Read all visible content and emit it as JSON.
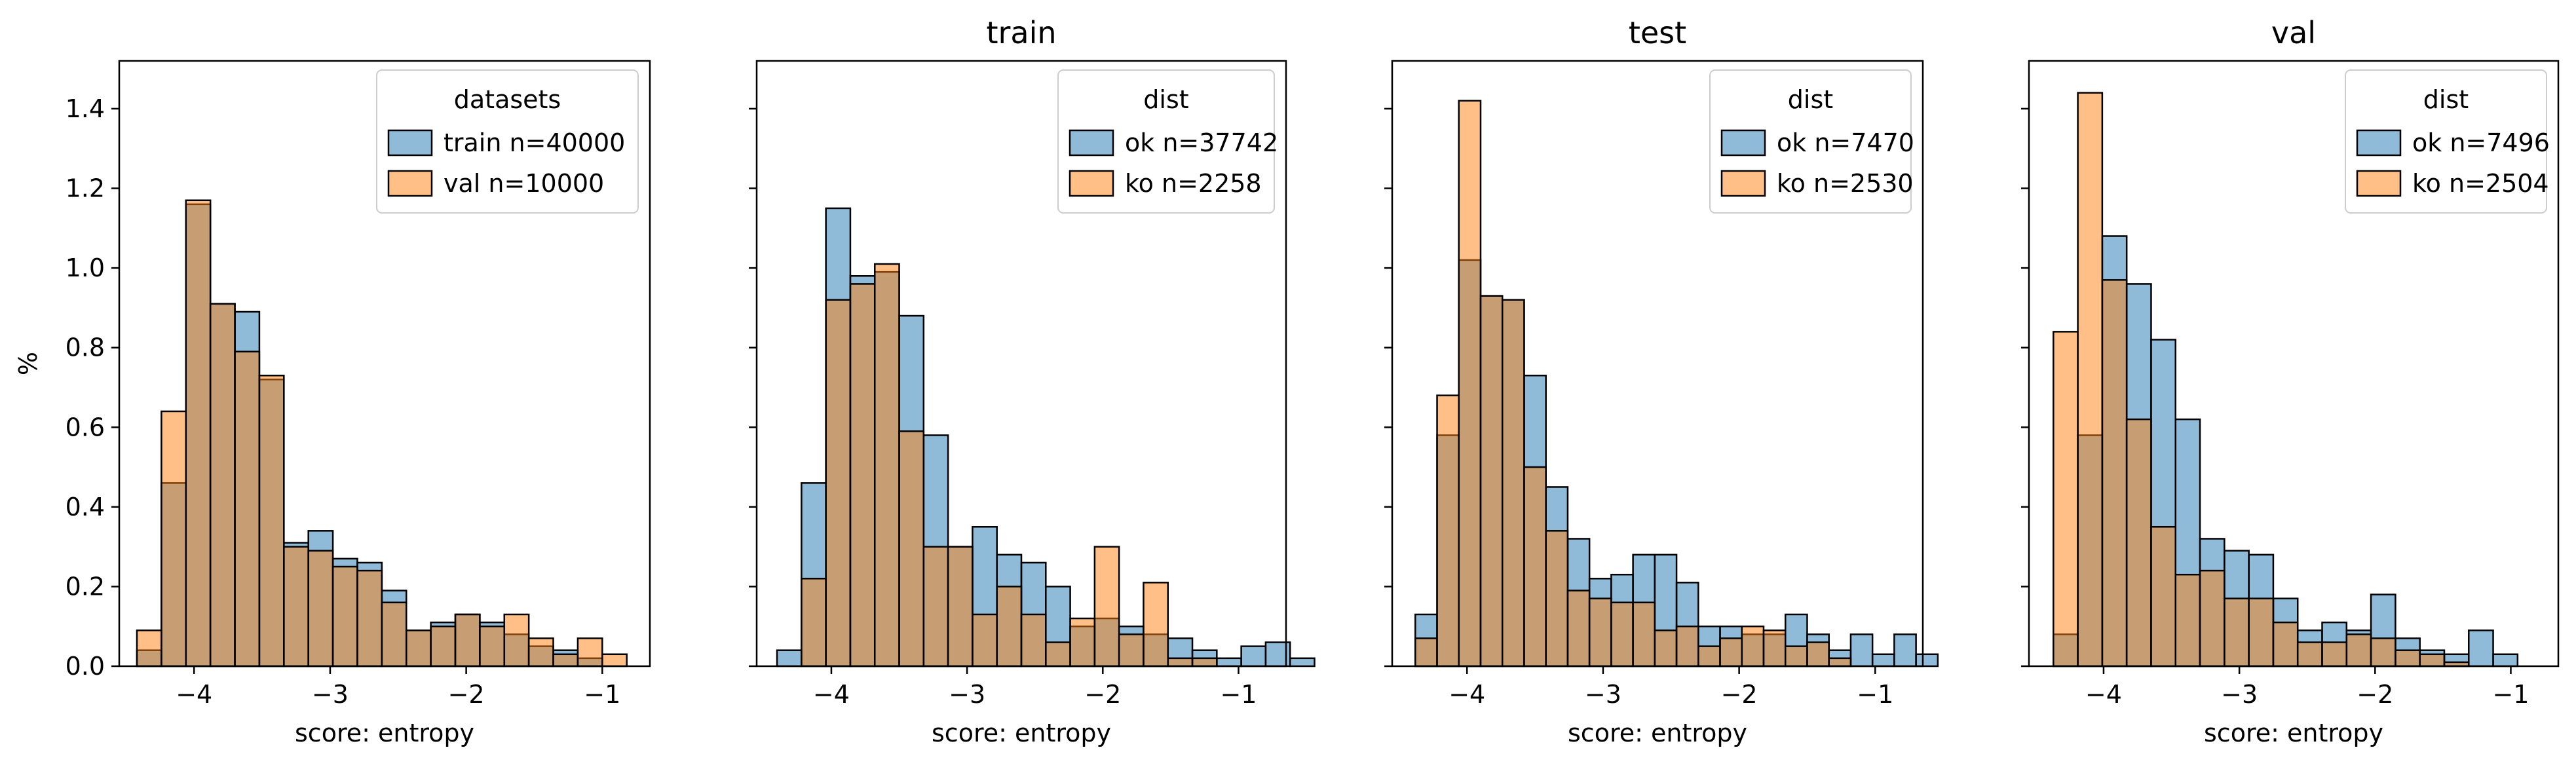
{
  "figure": {
    "colors": {
      "series_a": "#1f77b4",
      "series_b": "#ff7f0e",
      "edge": "#000000",
      "overlap": "#c08c5f"
    },
    "bar_alpha": 0.5
  },
  "chart_data": [
    {
      "type": "bar",
      "title": "",
      "xlabel": "score: entropy",
      "ylabel": "%",
      "xlim": [
        -4.55,
        -0.65
      ],
      "ylim": [
        0,
        1.52
      ],
      "xticks": [
        -4,
        -3,
        -2,
        -1
      ],
      "xtick_labels": [
        "−4",
        "−3",
        "−2",
        "−1"
      ],
      "yticks": [
        0,
        0.2,
        0.4,
        0.6,
        0.8,
        1.0,
        1.2,
        1.4
      ],
      "ytick_labels": [
        "0.0",
        "0.2",
        "0.4",
        "0.6",
        "0.8",
        "1.0",
        "1.2",
        "1.4"
      ],
      "grid": false,
      "legend": {
        "title": "datasets",
        "position": "top-right"
      },
      "series": [
        {
          "name": "train n=40000",
          "bin_start": -4.42,
          "bin_width": 0.18,
          "values": [
            0.04,
            0.46,
            1.16,
            0.91,
            0.89,
            0.72,
            0.31,
            0.34,
            0.27,
            0.26,
            0.19,
            0.09,
            0.11,
            0.13,
            0.11,
            0.08,
            0.05,
            0.04,
            0.02
          ]
        },
        {
          "name": "val n=10000",
          "bin_start": -4.42,
          "bin_width": 0.18,
          "values": [
            0.09,
            0.64,
            1.17,
            0.91,
            0.79,
            0.73,
            0.3,
            0.29,
            0.25,
            0.24,
            0.16,
            0.09,
            0.1,
            0.13,
            0.1,
            0.13,
            0.07,
            0.03,
            0.07,
            0.03
          ]
        }
      ]
    },
    {
      "type": "bar",
      "title": "train",
      "xlabel": "score: entropy",
      "ylabel": "",
      "xlim": [
        -4.55,
        -0.65
      ],
      "ylim": [
        0,
        1.52
      ],
      "xticks": [
        -4,
        -3,
        -2,
        -1
      ],
      "xtick_labels": [
        "−4",
        "−3",
        "−2",
        "−1"
      ],
      "yticks": [
        0,
        0.2,
        0.4,
        0.6,
        0.8,
        1.0,
        1.2,
        1.4
      ],
      "grid": false,
      "legend": {
        "title": "dist",
        "position": "top-right"
      },
      "series": [
        {
          "name": "ok n=37742",
          "bin_start": -4.4,
          "bin_width": 0.18,
          "values": [
            0.04,
            0.46,
            1.15,
            0.98,
            0.99,
            0.88,
            0.58,
            0.3,
            0.35,
            0.28,
            0.26,
            0.2,
            0.1,
            0.12,
            0.1,
            0.08,
            0.07,
            0.04,
            0.02,
            0.05,
            0.06,
            0.02
          ]
        },
        {
          "name": "ko n=2258",
          "bin_start": -4.4,
          "bin_width": 0.18,
          "values": [
            0.0,
            0.22,
            0.92,
            0.96,
            1.01,
            0.59,
            0.3,
            0.3,
            0.13,
            0.2,
            0.13,
            0.06,
            0.12,
            0.3,
            0.08,
            0.21,
            0.02,
            0.02
          ]
        }
      ]
    },
    {
      "type": "bar",
      "title": "test",
      "xlabel": "score: entropy",
      "ylabel": "",
      "xlim": [
        -4.55,
        -0.65
      ],
      "ylim": [
        0,
        1.52
      ],
      "xticks": [
        -4,
        -3,
        -2,
        -1
      ],
      "xtick_labels": [
        "−4",
        "−3",
        "−2",
        "−1"
      ],
      "yticks": [
        0,
        0.2,
        0.4,
        0.6,
        0.8,
        1.0,
        1.2,
        1.4
      ],
      "grid": false,
      "legend": {
        "title": "dist",
        "position": "top-right"
      },
      "series": [
        {
          "name": "ok n=7470",
          "bin_start": -4.38,
          "bin_width": 0.16,
          "values": [
            0.13,
            0.58,
            1.02,
            0.93,
            0.92,
            0.73,
            0.45,
            0.32,
            0.22,
            0.23,
            0.28,
            0.28,
            0.21,
            0.1,
            0.1,
            0.08,
            0.08,
            0.13,
            0.08,
            0.04,
            0.08,
            0.03,
            0.08,
            0.03
          ]
        },
        {
          "name": "ko n=2530",
          "bin_start": -4.38,
          "bin_width": 0.16,
          "values": [
            0.07,
            0.68,
            1.42,
            0.93,
            0.92,
            0.5,
            0.34,
            0.19,
            0.17,
            0.16,
            0.16,
            0.09,
            0.1,
            0.05,
            0.07,
            0.1,
            0.09,
            0.05,
            0.06,
            0.02
          ]
        }
      ]
    },
    {
      "type": "bar",
      "title": "val",
      "xlabel": "score: entropy",
      "ylabel": "",
      "xlim": [
        -4.55,
        -0.65
      ],
      "ylim": [
        0,
        1.52
      ],
      "xticks": [
        -4,
        -3,
        -2,
        -1
      ],
      "xtick_labels": [
        "−4",
        "−3",
        "−2",
        "−1"
      ],
      "yticks": [
        0,
        0.2,
        0.4,
        0.6,
        0.8,
        1.0,
        1.2,
        1.4
      ],
      "grid": false,
      "legend": {
        "title": "dist",
        "position": "top-right"
      },
      "series": [
        {
          "name": "ok n=7496",
          "bin_start": -4.37,
          "bin_width": 0.18,
          "values": [
            0.08,
            0.58,
            1.08,
            0.96,
            0.82,
            0.62,
            0.32,
            0.29,
            0.28,
            0.17,
            0.09,
            0.11,
            0.09,
            0.18,
            0.07,
            0.04,
            0.03,
            0.09,
            0.03
          ]
        },
        {
          "name": "ko n=2504",
          "bin_start": -4.37,
          "bin_width": 0.18,
          "values": [
            0.84,
            1.44,
            0.97,
            0.62,
            0.35,
            0.23,
            0.24,
            0.17,
            0.17,
            0.11,
            0.06,
            0.06,
            0.08,
            0.07,
            0.04,
            0.03,
            0.01
          ]
        }
      ]
    }
  ]
}
